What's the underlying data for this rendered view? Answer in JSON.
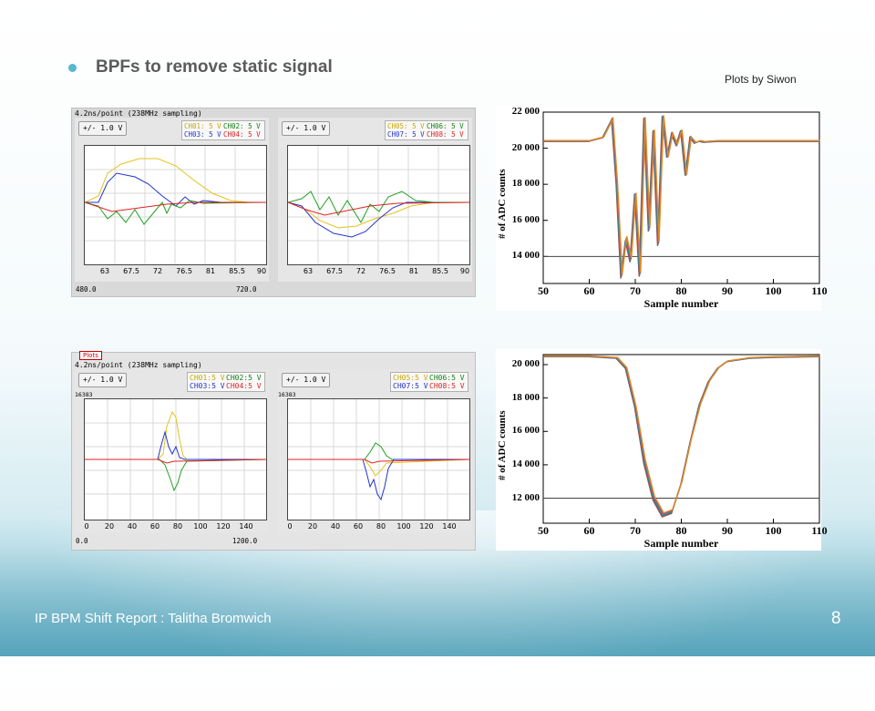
{
  "slide": {
    "title": "BPFs to remove static signal",
    "credit": "Plots by Siwon",
    "footer": "IP BPM Shift Report : Talitha Bromwich",
    "page_number": "8"
  },
  "colors": {
    "ch_green": "#22a022",
    "ch_yellow": "#e6c21c",
    "ch_blue": "#2233cc",
    "ch_red": "#dd2222",
    "accent": "#56b7cf"
  },
  "scope_top": {
    "rate": "4.2ns/point (238MHz sampling)",
    "left": {
      "range": "+/- 1.0 V",
      "legend": [
        "CH01: 5 V",
        "CH02: 5 V",
        "CH03: 5 V",
        "CH04: 5 V"
      ],
      "xticks": [
        "63",
        "67.5",
        "72",
        "76.5",
        "81",
        "85.5",
        "90"
      ],
      "foot_left": "480.0",
      "foot_right": "720.0"
    },
    "right": {
      "range": "+/- 1.0 V",
      "legend": [
        "CH05: 5 V",
        "CH06: 5 V",
        "CH07: 5 V",
        "CH08: 5 V"
      ],
      "xticks": [
        "63",
        "67.5",
        "72",
        "76.5",
        "81",
        "85.5",
        "90"
      ]
    }
  },
  "scope_bottom": {
    "tab": "Plots",
    "rate": "4.2ns/point (238MHz sampling)",
    "left": {
      "range": "+/- 1.0 V",
      "legend": [
        "CH01:5 V",
        "CH02:5 V",
        "CH03:5 V",
        "CH04:5 V"
      ],
      "topval": "16383",
      "xticks": [
        "0",
        "20",
        "40",
        "60",
        "80",
        "100",
        "120",
        "140"
      ],
      "foot_left": "0.0",
      "foot_right": "1200.0"
    },
    "right": {
      "range": "+/- 1.0 V",
      "legend": [
        "CH05:5 V",
        "CH06:5 V",
        "CH07:5 V",
        "CH08:5 V"
      ],
      "topval": "16383",
      "xticks": [
        "0",
        "20",
        "40",
        "60",
        "80",
        "100",
        "120",
        "140"
      ]
    }
  },
  "chart_data": [
    {
      "type": "line",
      "xlabel": "Sample number",
      "ylabel": "# of ADC counts",
      "xlim": [
        50,
        110
      ],
      "ylim": [
        12500,
        22000
      ],
      "xticks": [
        50,
        60,
        70,
        80,
        90,
        100,
        110
      ],
      "yticks": [
        14000,
        16000,
        18000,
        20000,
        22000
      ],
      "threshold": 14000,
      "series": [
        {
          "x": [
            50,
            60,
            63,
            65,
            66,
            67,
            68,
            69,
            70,
            71,
            72,
            73,
            74,
            75,
            76,
            77,
            78,
            79,
            80,
            81,
            82,
            83,
            84,
            85,
            88,
            95,
            110
          ],
          "y": [
            20400,
            20400,
            20600,
            21600,
            18000,
            12900,
            15000,
            13800,
            17500,
            13000,
            21700,
            15500,
            21000,
            14700,
            21800,
            19500,
            20800,
            20200,
            21000,
            18500,
            20600,
            20300,
            20400,
            20350,
            20400,
            20400,
            20400
          ]
        }
      ]
    },
    {
      "type": "line",
      "xlabel": "Sample number",
      "ylabel": "# of ADC counts",
      "xlim": [
        50,
        110
      ],
      "ylim": [
        10500,
        20600
      ],
      "xticks": [
        50,
        60,
        70,
        80,
        90,
        100,
        110
      ],
      "yticks": [
        12000,
        14000,
        16000,
        18000,
        20000
      ],
      "threshold": 12000,
      "series": [
        {
          "x": [
            50,
            60,
            66,
            68,
            70,
            72,
            74,
            76,
            78,
            80,
            82,
            84,
            86,
            88,
            90,
            95,
            100,
            110
          ],
          "y": [
            20500,
            20500,
            20400,
            19800,
            17500,
            14200,
            12000,
            11000,
            11200,
            12900,
            15400,
            17600,
            19000,
            19800,
            20200,
            20400,
            20450,
            20500
          ]
        }
      ]
    }
  ]
}
